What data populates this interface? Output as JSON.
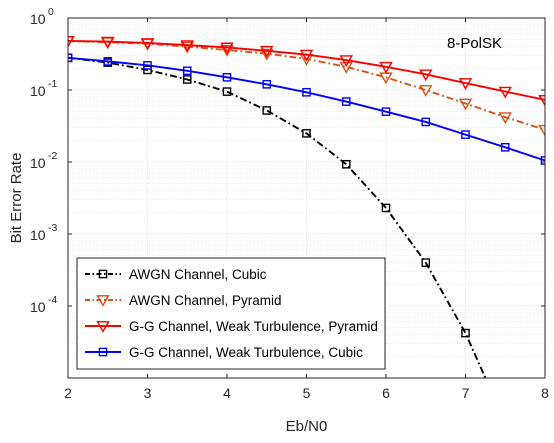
{
  "chart_data": {
    "type": "line",
    "title": "",
    "annotation": "8-PolSK",
    "xlabel": "Eb/N0",
    "ylabel": "Bit Error Rate",
    "x_scale": "linear",
    "y_scale": "log",
    "xlim": [
      2,
      8
    ],
    "ylim": [
      1e-05,
      1
    ],
    "x_ticks": [
      "2",
      "3",
      "4",
      "5",
      "6",
      "7",
      "8"
    ],
    "y_ticks": [
      {
        "value": 1,
        "mantissa": "10",
        "exp": "0"
      },
      {
        "value": 0.1,
        "mantissa": "10",
        "exp": "-1"
      },
      {
        "value": 0.01,
        "mantissa": "10",
        "exp": "-2"
      },
      {
        "value": 0.001,
        "mantissa": "10",
        "exp": "-3"
      },
      {
        "value": 0.0001,
        "mantissa": "10",
        "exp": "-4"
      }
    ],
    "grid": true,
    "legend_placement": "bottom-left",
    "series": [
      {
        "name": "AWGN Channel, Cubic",
        "color": "#000000",
        "line_style": "dash-dot",
        "marker": "square",
        "x": [
          2,
          2.5,
          3,
          3.5,
          4,
          4.5,
          5,
          5.5,
          6,
          6.5,
          7,
          7.25
        ],
        "y": [
          0.28,
          0.24,
          0.19,
          0.14,
          0.095,
          0.052,
          0.025,
          0.0093,
          0.0023,
          0.0004,
          4.2e-05,
          1e-05
        ],
        "marker_count": 11
      },
      {
        "name": "AWGN Channel, Pyramid",
        "color": "#D95319",
        "line_style": "dash-dot",
        "marker": "triangle-down",
        "x": [
          2,
          2.5,
          3,
          3.5,
          4,
          4.5,
          5,
          5.5,
          6,
          6.5,
          7,
          7.5,
          8
        ],
        "y": [
          0.48,
          0.46,
          0.44,
          0.4,
          0.36,
          0.32,
          0.27,
          0.21,
          0.15,
          0.1,
          0.065,
          0.042,
          0.028
        ]
      },
      {
        "name": "G-G Channel, Weak Turbulence, Pyramid",
        "color": "#FF0000",
        "line_style": "solid",
        "marker": "triangle-down",
        "x": [
          2,
          2.5,
          3,
          3.5,
          4,
          4.5,
          5,
          5.5,
          6,
          6.5,
          7,
          7.5,
          8
        ],
        "y": [
          0.48,
          0.47,
          0.45,
          0.42,
          0.39,
          0.35,
          0.31,
          0.26,
          0.21,
          0.165,
          0.125,
          0.095,
          0.073
        ]
      },
      {
        "name": "G-G Channel, Weak Turbulence, Cubic",
        "color": "#0000FF",
        "line_style": "solid",
        "marker": "square",
        "x": [
          2,
          2.5,
          3,
          3.5,
          4,
          4.5,
          5,
          5.5,
          6,
          6.5,
          7,
          7.5,
          8
        ],
        "y": [
          0.28,
          0.25,
          0.22,
          0.185,
          0.15,
          0.12,
          0.093,
          0.069,
          0.05,
          0.036,
          0.024,
          0.016,
          0.0105
        ]
      }
    ]
  }
}
